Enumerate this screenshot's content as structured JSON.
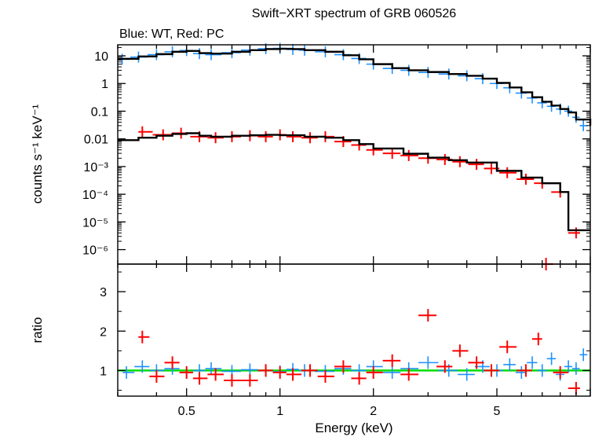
{
  "chart_data": [
    {
      "type": "scatter",
      "panel": "spectrum",
      "title": "Swift−XRT spectrum of GRB 060526",
      "subtitle": "Blue: WT, Red: PC",
      "xlabel": "Energy (keV)",
      "ylabel": "counts s⁻¹ keV⁻¹",
      "x_scale": "log",
      "y_scale": "log",
      "xlim": [
        0.3,
        10
      ],
      "ylim": [
        3e-07,
        25
      ],
      "y_ticks": [
        {
          "value": 10,
          "label": "10"
        },
        {
          "value": 1,
          "label": "1"
        },
        {
          "value": 0.1,
          "label": "0.1"
        },
        {
          "value": 0.01,
          "label": "0.01"
        },
        {
          "value": 0.001,
          "label": "10⁻³"
        },
        {
          "value": 0.0001,
          "label": "10⁻⁴"
        },
        {
          "value": 1e-05,
          "label": "10⁻⁵"
        },
        {
          "value": 1e-06,
          "label": "10⁻⁶"
        }
      ],
      "series": [
        {
          "color": "#1e90ff",
          "style": "errorbar",
          "x": [
            0.31,
            0.35,
            0.4,
            0.45,
            0.5,
            0.55,
            0.6,
            0.7,
            0.8,
            0.9,
            1.0,
            1.1,
            1.2,
            1.4,
            1.6,
            1.8,
            2.0,
            2.3,
            2.6,
            3.0,
            3.5,
            4.0,
            4.5,
            5.0,
            5.5,
            6.0,
            6.5,
            7.0,
            7.5,
            8.0,
            8.5,
            9.0,
            9.5
          ],
          "y": [
            7.5,
            9.0,
            11,
            14,
            15.5,
            12,
            11,
            13,
            16,
            18,
            18.5,
            17,
            16,
            14,
            11,
            8,
            5,
            3.5,
            3.0,
            2.5,
            2.2,
            1.9,
            1.5,
            1.0,
            0.7,
            0.45,
            0.3,
            0.2,
            0.15,
            0.12,
            0.1,
            0.06,
            0.03
          ]
        },
        {
          "color": "#ff0000",
          "style": "errorbar",
          "x": [
            0.36,
            0.42,
            0.48,
            0.55,
            0.62,
            0.7,
            0.8,
            0.9,
            1.0,
            1.1,
            1.25,
            1.4,
            1.6,
            1.8,
            2.0,
            2.3,
            2.6,
            3.0,
            3.4,
            3.8,
            4.3,
            4.8,
            5.4,
            6.2,
            7.0,
            8.0,
            9.0
          ],
          "y": [
            0.018,
            0.014,
            0.016,
            0.012,
            0.011,
            0.012,
            0.013,
            0.012,
            0.014,
            0.012,
            0.011,
            0.012,
            0.008,
            0.006,
            0.004,
            0.003,
            0.0025,
            0.002,
            0.0018,
            0.0015,
            0.0012,
            0.00085,
            0.0006,
            0.00035,
            0.00025,
            0.00012,
            4e-06
          ]
        },
        {
          "color": "#000000",
          "style": "step",
          "x": [
            0.3,
            0.35,
            0.4,
            0.45,
            0.5,
            0.55,
            0.6,
            0.7,
            0.8,
            0.9,
            1.0,
            1.1,
            1.2,
            1.4,
            1.6,
            1.8,
            2.0,
            2.3,
            2.6,
            3.0,
            3.5,
            4.0,
            4.5,
            5.0,
            5.5,
            6.0,
            6.5,
            7.0,
            7.5,
            8.0,
            8.5,
            9.0,
            10.0
          ],
          "y": [
            7.8,
            9.5,
            11.5,
            14,
            15,
            12.5,
            12,
            14,
            16,
            17.5,
            18,
            17.5,
            16,
            14,
            10.5,
            7.5,
            5,
            3.6,
            3.0,
            2.6,
            2.2,
            1.9,
            1.5,
            1.05,
            0.72,
            0.48,
            0.32,
            0.22,
            0.16,
            0.12,
            0.09,
            0.05,
            0.03
          ]
        },
        {
          "color": "#000000",
          "style": "step",
          "x": [
            0.3,
            0.35,
            0.4,
            0.45,
            0.5,
            0.55,
            0.6,
            0.7,
            0.8,
            0.9,
            1.0,
            1.2,
            1.4,
            1.6,
            1.8,
            2.0,
            2.5,
            3.0,
            3.5,
            4.0,
            5.0,
            6.0,
            7.0,
            8.0,
            8.5,
            10.0
          ],
          "y": [
            0.009,
            0.011,
            0.013,
            0.015,
            0.016,
            0.013,
            0.012,
            0.013,
            0.0135,
            0.014,
            0.0135,
            0.012,
            0.011,
            0.009,
            0.0065,
            0.0045,
            0.0029,
            0.0021,
            0.0017,
            0.0014,
            0.0007,
            0.0004,
            0.00025,
            0.00012,
            5e-06,
            5e-06
          ]
        }
      ]
    },
    {
      "type": "scatter",
      "panel": "ratio",
      "xlabel": "Energy (keV)",
      "ylabel": "ratio",
      "x_scale": "log",
      "xlim": [
        0.3,
        10
      ],
      "ylim": [
        0.35,
        3.7
      ],
      "x_ticks": [
        {
          "value": 0.5,
          "label": "0.5"
        },
        {
          "value": 1,
          "label": "1"
        },
        {
          "value": 2,
          "label": "2"
        },
        {
          "value": 5,
          "label": "5"
        }
      ],
      "y_ticks": [
        {
          "value": 1,
          "label": "1"
        },
        {
          "value": 2,
          "label": "2"
        },
        {
          "value": 3,
          "label": "3"
        }
      ],
      "reference_line": {
        "value": 1,
        "color": "#00dd00"
      },
      "series": [
        {
          "color": "#1e90ff",
          "style": "errorbar",
          "x": [
            0.32,
            0.36,
            0.4,
            0.45,
            0.5,
            0.55,
            0.6,
            0.7,
            0.8,
            0.9,
            1.0,
            1.1,
            1.2,
            1.4,
            1.6,
            1.8,
            2.0,
            2.3,
            2.6,
            3.0,
            3.5,
            4.0,
            4.5,
            5.0,
            5.5,
            6.0,
            6.5,
            7.0,
            7.5,
            8.0,
            8.5,
            9.0,
            9.5
          ],
          "y": [
            0.95,
            1.1,
            1.0,
            1.05,
            0.95,
            1.0,
            1.05,
            0.98,
            1.02,
            1.0,
            0.97,
            1.03,
            1.0,
            0.98,
            1.05,
            1.0,
            1.1,
            0.95,
            1.05,
            1.2,
            1.0,
            0.9,
            1.1,
            1.0,
            1.15,
            0.95,
            1.2,
            1.0,
            1.3,
            0.9,
            1.1,
            1.05,
            1.4
          ]
        },
        {
          "color": "#ff0000",
          "style": "errorbar",
          "x": [
            0.36,
            0.4,
            0.45,
            0.5,
            0.55,
            0.62,
            0.7,
            0.8,
            0.9,
            1.0,
            1.1,
            1.25,
            1.4,
            1.6,
            1.8,
            2.0,
            2.3,
            2.6,
            3.0,
            3.4,
            3.8,
            4.3,
            4.8,
            5.4,
            6.2,
            6.8,
            7.2,
            8.0,
            9.0
          ],
          "y": [
            1.85,
            0.85,
            1.2,
            0.95,
            0.8,
            0.9,
            0.75,
            0.75,
            1.0,
            0.95,
            0.9,
            1.0,
            0.85,
            1.1,
            0.8,
            0.95,
            1.25,
            0.9,
            2.4,
            1.1,
            1.5,
            1.2,
            1.0,
            1.6,
            1.0,
            1.8,
            3.7,
            0.95,
            0.55
          ]
        }
      ]
    }
  ]
}
